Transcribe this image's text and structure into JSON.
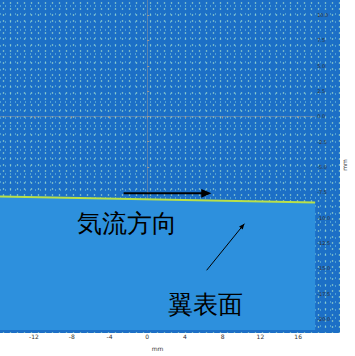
{
  "chart_data": {
    "type": "line",
    "x": [
      -15.6,
      17.8
    ],
    "values": [
      -7.9,
      -8.5
    ],
    "color": "#b8e04a",
    "annotations": [
      "気流方向",
      "翼表面"
    ],
    "xlabel": "mm",
    "ylabel": "mm",
    "xlim": [
      -15.6,
      17.8
    ],
    "ylim": [
      -21.1,
      11.5
    ],
    "xticks": [
      -12,
      -8,
      -4,
      0,
      4,
      8,
      12,
      16
    ],
    "yticks": [
      {
        "value": 10,
        "label": "10.0"
      },
      {
        "value": 7.5,
        "label": "7.5"
      },
      {
        "value": 5,
        "label": "5.0"
      },
      {
        "value": 2.5,
        "label": "2.5"
      },
      {
        "value": 0,
        "label": "0.0"
      },
      {
        "value": -2.5,
        "label": "-2.5"
      },
      {
        "value": -5,
        "label": "-5.0"
      },
      {
        "value": -7.5,
        "label": "-7.5"
      },
      {
        "value": -10,
        "label": "-10.0"
      },
      {
        "value": -12.5,
        "label": "-12.5"
      },
      {
        "value": -15,
        "label": "-15.0"
      },
      {
        "value": -17.5,
        "label": "-17.5"
      },
      {
        "value": -20,
        "label": "-20.0"
      }
    ],
    "grid": false
  }
}
